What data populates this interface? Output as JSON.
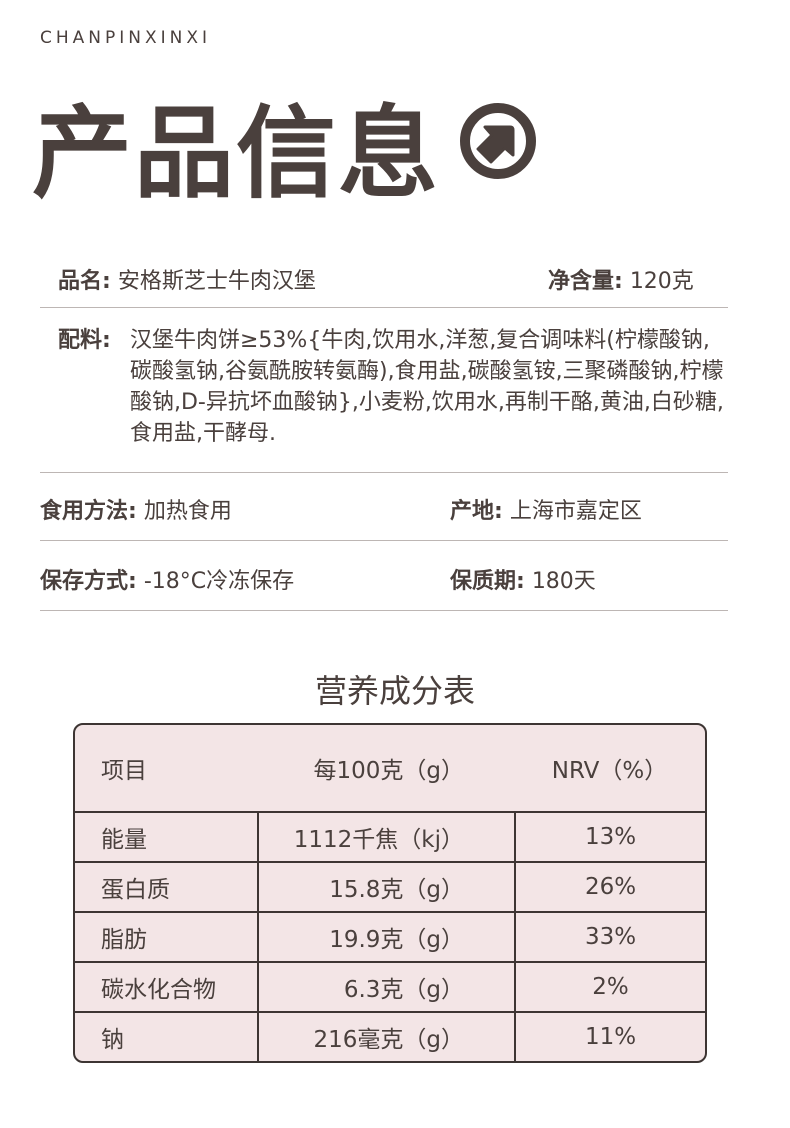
{
  "header": {
    "subtitle": "CHANPINXINXI",
    "title": "产品信息",
    "icon": "arrow-up-right-circle-icon"
  },
  "info": {
    "name_label": "品名:",
    "name_value": "安格斯芝士牛肉汉堡",
    "net_label": "净含量:",
    "net_value": "120克",
    "ingredients_label": "配料:",
    "ingredients_value": "汉堡牛肉饼≥53%{牛肉,饮用水,洋葱,复合调味料(柠檬酸钠,碳酸氢钠,谷氨酰胺转氨酶),食用盐,碳酸氢铵,三聚磷酸钠,柠檬酸钠,D-异抗坏血酸钠},小麦粉,饮用水,再制干酪,黄油,白砂糖,食用盐,干酵母.",
    "usage_label": "食用方法:",
    "usage_value": "加热食用",
    "origin_label": "产地:",
    "origin_value": "上海市嘉定区",
    "storage_label": "保存方式:",
    "storage_value": "-18°C冷冻保存",
    "shelf_label": "保质期:",
    "shelf_value": "180天"
  },
  "nutrition": {
    "title": "营养成分表",
    "headers": [
      "项目",
      "每100克（g）",
      "NRV（%）"
    ],
    "rows": [
      [
        "能量",
        "1112千焦（kj）",
        "13%"
      ],
      [
        "蛋白质",
        "15.8克（g）",
        "26%"
      ],
      [
        "脂肪",
        "19.9克（g）",
        "33%"
      ],
      [
        "碳水化合物",
        "6.3克（g）",
        "2%"
      ],
      [
        "钠",
        "216毫克（g）",
        "11%"
      ]
    ]
  },
  "colors": {
    "text": "#4a403d",
    "table_bg": "#f3e5e6"
  }
}
